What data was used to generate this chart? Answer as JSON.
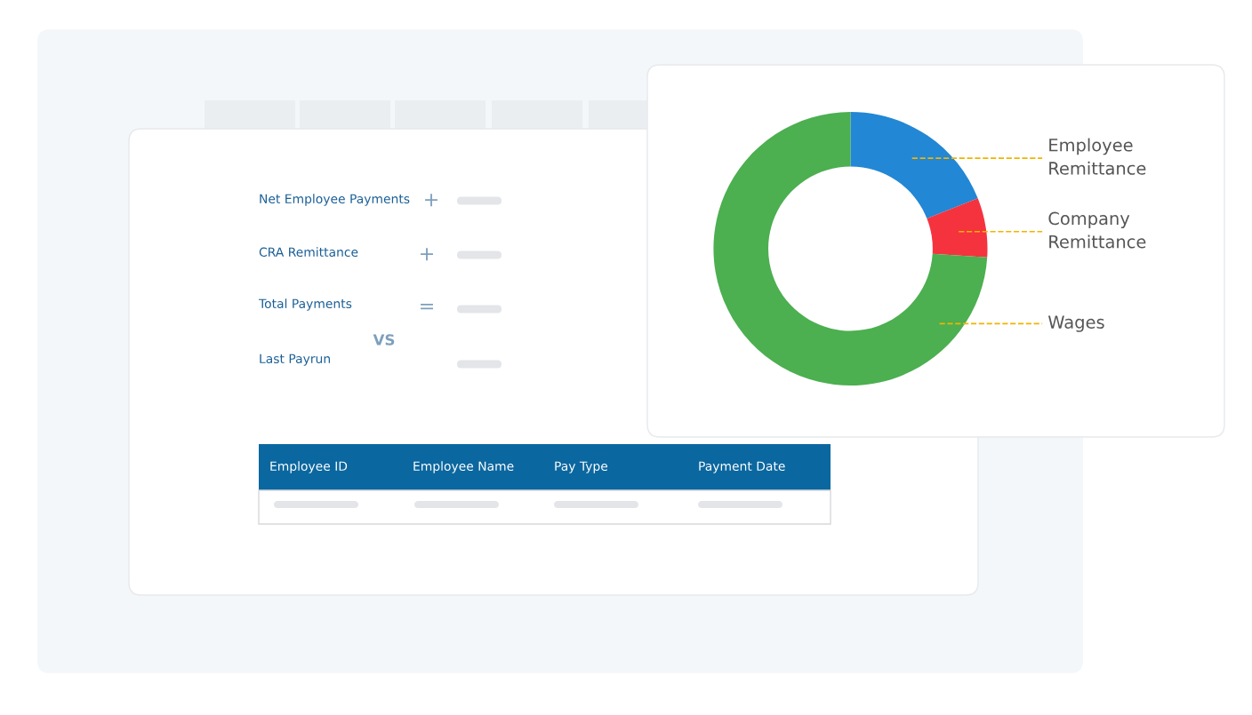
{
  "chart_data": [
    {
      "type": "other",
      "annotations": [
        "Net Employee Payments",
        "+",
        "CRA Remittance",
        "+",
        "Total Payments",
        "=",
        "VS",
        "Last Payrun",
        "Employee ID",
        "Employee Name",
        "Pay Type",
        "Payment Date"
      ]
    },
    {
      "type": "donut",
      "categories": [
        "Employee Remittance",
        "Company Remittance",
        "Wages"
      ],
      "values": [
        19,
        7,
        74
      ],
      "colors": [
        "#2287d4",
        "#f5333f",
        "#4caf50"
      ]
    }
  ]
}
